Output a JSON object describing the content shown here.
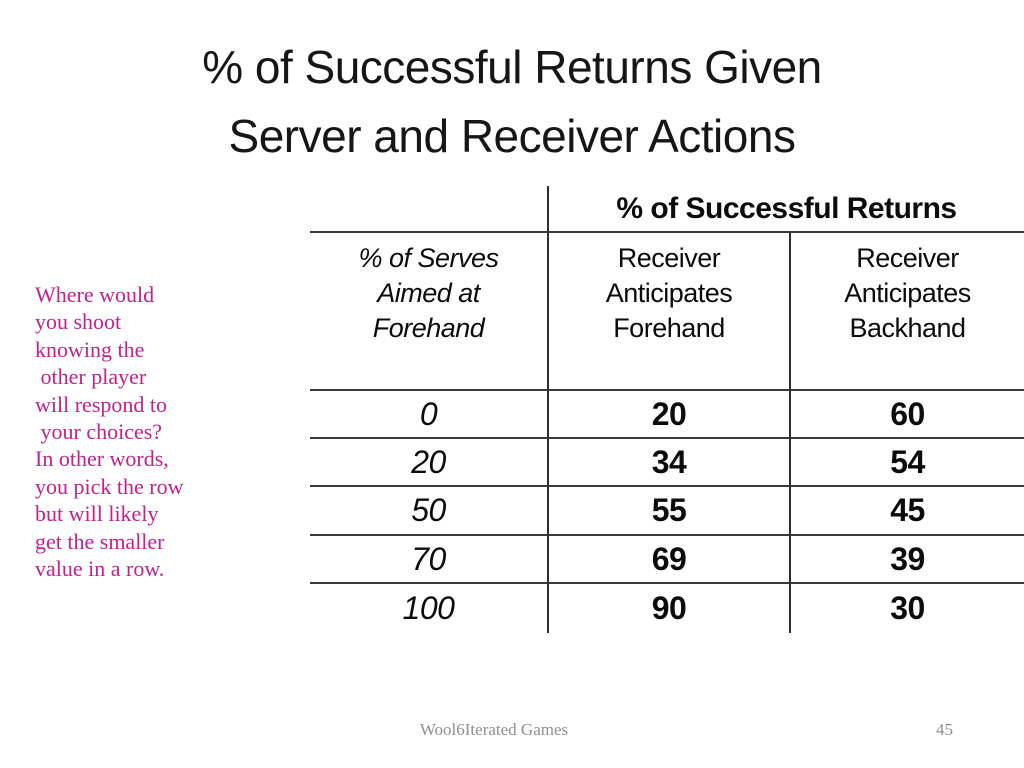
{
  "slide": {
    "title": "% of Successful Returns Given\nServer and Receiver Actions",
    "annotation": "Where would\nyou shoot\nknowing the\n other player\nwill respond to\n your choices?\nIn other words,\nyou pick the row\nbut will likely\nget the smaller\nvalue in a row.",
    "annotation_color": "#C3218F",
    "footer_left": "Wool6Iterated Games",
    "page_number": "45"
  },
  "table": {
    "spanning_header": "% of Successful Returns",
    "row_header": "% of Serves\nAimed at\nForehand",
    "col_headers": [
      "Receiver\nAnticipates\nForehand",
      "Receiver\nAnticipates\nBackhand"
    ],
    "rows": [
      {
        "serve_pct": "0",
        "forehand": "20",
        "backhand": "60"
      },
      {
        "serve_pct": "20",
        "forehand": "34",
        "backhand": "54"
      },
      {
        "serve_pct": "50",
        "forehand": "55",
        "backhand": "45"
      },
      {
        "serve_pct": "70",
        "forehand": "69",
        "backhand": "39"
      },
      {
        "serve_pct": "100",
        "forehand": "90",
        "backhand": "30"
      }
    ]
  },
  "chart_data": {
    "type": "table",
    "title": "% of Successful Returns Given Server and Receiver Actions",
    "columns": [
      "% of Serves Aimed at Forehand",
      "Receiver Anticipates Forehand",
      "Receiver Anticipates Backhand"
    ],
    "rows": [
      [
        0,
        20,
        60
      ],
      [
        20,
        34,
        54
      ],
      [
        50,
        55,
        45
      ],
      [
        70,
        69,
        39
      ],
      [
        100,
        90,
        30
      ]
    ]
  }
}
